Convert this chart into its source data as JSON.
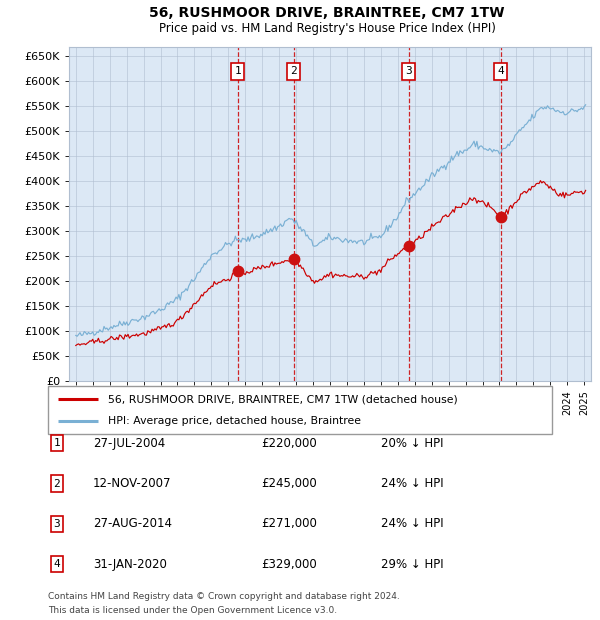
{
  "title1": "56, RUSHMOOR DRIVE, BRAINTREE, CM7 1TW",
  "title2": "Price paid vs. HM Land Registry's House Price Index (HPI)",
  "hpi_color": "#7ab0d4",
  "price_color": "#cc0000",
  "background_chart": "#dce8f5",
  "grid_color": "#b0bed0",
  "ylim": [
    0,
    670000
  ],
  "yticks": [
    0,
    50000,
    100000,
    150000,
    200000,
    250000,
    300000,
    350000,
    400000,
    450000,
    500000,
    550000,
    600000,
    650000
  ],
  "xlim_start": 1994.6,
  "xlim_end": 2025.4,
  "sales": [
    {
      "num": 1,
      "date_dec": 2004.57,
      "price": 220000,
      "label": "27-JUL-2004",
      "pct": "20%"
    },
    {
      "num": 2,
      "date_dec": 2007.87,
      "price": 245000,
      "label": "12-NOV-2007",
      "pct": "24%"
    },
    {
      "num": 3,
      "date_dec": 2014.65,
      "price": 271000,
      "label": "27-AUG-2014",
      "pct": "24%"
    },
    {
      "num": 4,
      "date_dec": 2020.08,
      "price": 329000,
      "label": "31-JAN-2020",
      "pct": "29%"
    }
  ],
  "legend_house_label": "56, RUSHMOOR DRIVE, BRAINTREE, CM7 1TW (detached house)",
  "legend_hpi_label": "HPI: Average price, detached house, Braintree",
  "footnote1": "Contains HM Land Registry data © Crown copyright and database right 2024.",
  "footnote2": "This data is licensed under the Open Government Licence v3.0."
}
